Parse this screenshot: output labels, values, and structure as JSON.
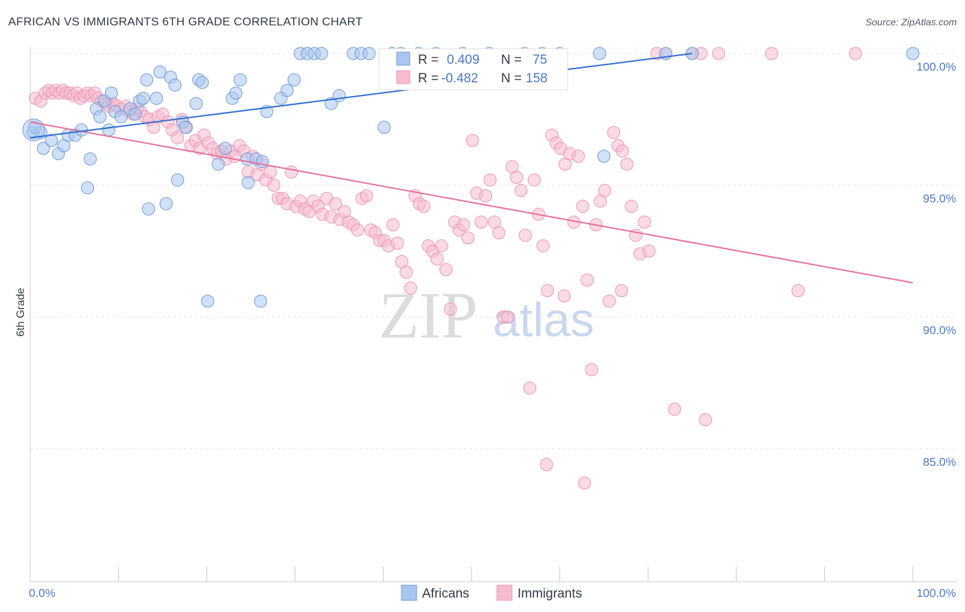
{
  "title": "AFRICAN VS IMMIGRANTS 6TH GRADE CORRELATION CHART",
  "source": "Source: ZipAtlas.com",
  "watermark": {
    "zip": "ZIP",
    "atlas": "atlas"
  },
  "colors": {
    "africans_fill": "#a9c6ee",
    "africans_stroke": "#6f9bd8",
    "africans_line": "#2f6fd0",
    "immigrants_fill": "#f6bcd0",
    "immigrants_stroke": "#ec93b3",
    "immigrants_line": "#e5709a",
    "tick_label": "#4a77c8",
    "grid": "#e6e6e6"
  },
  "legend_box": {
    "rows": [
      {
        "r_label": "R =",
        "r_value": "0.409",
        "n_label": "N =",
        "n_value": "75"
      },
      {
        "r_label": "R =",
        "r_value": "-0.482",
        "n_label": "N =",
        "n_value": "158"
      }
    ]
  },
  "bottom_legend": [
    "Africans",
    "Immigrants"
  ],
  "chart_data": {
    "type": "scatter",
    "title": "AFRICAN VS IMMIGRANTS 6TH GRADE CORRELATION CHART",
    "xlabel": "",
    "ylabel": "6th Grade",
    "x_tick_labels": [
      "0.0%",
      "100.0%"
    ],
    "y_tick_labels": [
      "100.0%",
      "95.0%",
      "90.0%",
      "85.0%"
    ],
    "y_ticks": [
      100,
      95,
      90,
      85
    ],
    "xlim": [
      0,
      100
    ],
    "ylim": [
      80,
      100
    ],
    "grid": true,
    "legend_position": "top-center",
    "series": [
      {
        "name": "Africans",
        "r": 0.409,
        "n": 75,
        "trend": {
          "x": [
            0,
            75
          ],
          "y": [
            96.8,
            100.0
          ]
        },
        "points": [
          [
            0.3,
            97.0
          ],
          [
            0.5,
            97.2
          ],
          [
            1.2,
            97.0
          ],
          [
            1.5,
            96.4
          ],
          [
            2.4,
            96.7
          ],
          [
            3.2,
            96.2
          ],
          [
            3.8,
            96.5
          ],
          [
            4.3,
            96.9
          ],
          [
            5.1,
            96.9
          ],
          [
            5.8,
            97.1
          ],
          [
            6.5,
            94.9
          ],
          [
            6.8,
            96.0
          ],
          [
            7.5,
            97.9
          ],
          [
            7.9,
            97.6
          ],
          [
            8.4,
            98.2
          ],
          [
            8.9,
            97.1
          ],
          [
            9.2,
            98.5
          ],
          [
            9.6,
            97.8
          ],
          [
            10.3,
            97.6
          ],
          [
            11.3,
            97.9
          ],
          [
            11.9,
            97.7
          ],
          [
            12.4,
            98.2
          ],
          [
            12.8,
            98.3
          ],
          [
            13.2,
            99.0
          ],
          [
            13.4,
            94.1
          ],
          [
            14.3,
            98.3
          ],
          [
            14.7,
            99.3
          ],
          [
            15.4,
            94.3
          ],
          [
            15.9,
            99.1
          ],
          [
            16.4,
            98.8
          ],
          [
            16.7,
            95.2
          ],
          [
            17.3,
            97.4
          ],
          [
            17.6,
            97.2
          ],
          [
            18.8,
            98.1
          ],
          [
            19.1,
            99.0
          ],
          [
            19.5,
            98.9
          ],
          [
            20.1,
            90.6
          ],
          [
            21.3,
            95.8
          ],
          [
            22.1,
            96.4
          ],
          [
            22.9,
            98.3
          ],
          [
            23.3,
            98.5
          ],
          [
            23.8,
            99.0
          ],
          [
            24.6,
            96.0
          ],
          [
            24.7,
            95.1
          ],
          [
            25.6,
            96.0
          ],
          [
            26.1,
            90.6
          ],
          [
            26.3,
            95.9
          ],
          [
            26.8,
            97.8
          ],
          [
            28.4,
            98.3
          ],
          [
            29.1,
            98.6
          ],
          [
            29.9,
            99.0
          ],
          [
            30.6,
            100.0
          ],
          [
            31.4,
            100.0
          ],
          [
            32.2,
            100.0
          ],
          [
            33.0,
            100.0
          ],
          [
            34.1,
            98.1
          ],
          [
            35.0,
            98.4
          ],
          [
            36.6,
            100.0
          ],
          [
            37.5,
            100.0
          ],
          [
            38.4,
            100.0
          ],
          [
            40.1,
            97.2
          ],
          [
            41.0,
            100.0
          ],
          [
            42.0,
            100.0
          ],
          [
            44.0,
            100.0
          ],
          [
            46.0,
            100.0
          ],
          [
            49.0,
            100.0
          ],
          [
            52.0,
            100.0
          ],
          [
            56.0,
            100.0
          ],
          [
            58.0,
            100.0
          ],
          [
            60.0,
            100.0
          ],
          [
            64.5,
            100.0
          ],
          [
            65.0,
            96.1
          ],
          [
            72.0,
            100.0
          ],
          [
            75.0,
            100.0
          ],
          [
            100.0,
            100.0
          ]
        ]
      },
      {
        "name": "Immigrants",
        "r": -0.482,
        "n": 158,
        "trend": {
          "x": [
            0,
            100
          ],
          "y": [
            97.4,
            91.3
          ]
        },
        "points": [
          [
            0.6,
            98.3
          ],
          [
            1.2,
            98.2
          ],
          [
            1.7,
            98.5
          ],
          [
            2.1,
            98.6
          ],
          [
            2.5,
            98.5
          ],
          [
            2.9,
            98.6
          ],
          [
            3.3,
            98.5
          ],
          [
            3.7,
            98.6
          ],
          [
            4.1,
            98.5
          ],
          [
            4.5,
            98.5
          ],
          [
            4.9,
            98.4
          ],
          [
            5.3,
            98.5
          ],
          [
            5.7,
            98.3
          ],
          [
            6.1,
            98.4
          ],
          [
            6.5,
            98.5
          ],
          [
            6.9,
            98.4
          ],
          [
            7.3,
            98.5
          ],
          [
            7.7,
            98.3
          ],
          [
            8.1,
            98.2
          ],
          [
            8.5,
            98.1
          ],
          [
            8.9,
            98.0
          ],
          [
            9.4,
            98.1
          ],
          [
            9.8,
            98.0
          ],
          [
            10.3,
            97.9
          ],
          [
            10.8,
            98.0
          ],
          [
            11.2,
            97.8
          ],
          [
            11.7,
            97.7
          ],
          [
            12.1,
            97.9
          ],
          [
            12.5,
            97.8
          ],
          [
            13.0,
            97.6
          ],
          [
            13.5,
            97.5
          ],
          [
            14.0,
            97.2
          ],
          [
            14.5,
            97.6
          ],
          [
            15.0,
            97.7
          ],
          [
            15.6,
            97.4
          ],
          [
            16.1,
            97.1
          ],
          [
            16.7,
            96.8
          ],
          [
            17.2,
            97.5
          ],
          [
            17.7,
            97.2
          ],
          [
            18.2,
            96.5
          ],
          [
            18.7,
            96.7
          ],
          [
            19.2,
            96.4
          ],
          [
            19.7,
            96.9
          ],
          [
            20.2,
            96.6
          ],
          [
            20.7,
            96.4
          ],
          [
            21.2,
            96.2
          ],
          [
            21.7,
            96.3
          ],
          [
            22.2,
            96.0
          ],
          [
            22.7,
            96.3
          ],
          [
            23.2,
            96.1
          ],
          [
            23.7,
            96.5
          ],
          [
            24.2,
            96.3
          ],
          [
            24.7,
            95.5
          ],
          [
            25.2,
            96.1
          ],
          [
            25.7,
            95.4
          ],
          [
            26.2,
            95.8
          ],
          [
            26.7,
            95.2
          ],
          [
            27.2,
            95.5
          ],
          [
            27.6,
            95.0
          ],
          [
            28.1,
            94.5
          ],
          [
            28.6,
            94.5
          ],
          [
            29.1,
            94.3
          ],
          [
            29.6,
            95.5
          ],
          [
            30.1,
            94.2
          ],
          [
            30.6,
            94.4
          ],
          [
            31.1,
            94.1
          ],
          [
            31.6,
            94.0
          ],
          [
            32.1,
            94.4
          ],
          [
            32.6,
            94.2
          ],
          [
            33.1,
            93.9
          ],
          [
            33.6,
            94.5
          ],
          [
            34.1,
            93.8
          ],
          [
            34.6,
            94.3
          ],
          [
            35.1,
            93.7
          ],
          [
            35.6,
            94.0
          ],
          [
            36.1,
            93.6
          ],
          [
            36.6,
            93.5
          ],
          [
            37.1,
            93.3
          ],
          [
            37.6,
            94.5
          ],
          [
            38.1,
            94.6
          ],
          [
            38.6,
            93.3
          ],
          [
            39.1,
            93.2
          ],
          [
            39.6,
            92.9
          ],
          [
            40.1,
            92.9
          ],
          [
            40.6,
            92.7
          ],
          [
            41.1,
            93.5
          ],
          [
            41.6,
            92.8
          ],
          [
            42.1,
            92.1
          ],
          [
            42.6,
            91.7
          ],
          [
            43.1,
            91.1
          ],
          [
            43.6,
            94.6
          ],
          [
            44.1,
            94.3
          ],
          [
            44.6,
            94.2
          ],
          [
            45.1,
            92.7
          ],
          [
            45.6,
            92.5
          ],
          [
            46.1,
            92.2
          ],
          [
            46.6,
            92.7
          ],
          [
            47.1,
            91.8
          ],
          [
            47.6,
            90.3
          ],
          [
            48.1,
            93.6
          ],
          [
            48.6,
            93.3
          ],
          [
            49.1,
            93.5
          ],
          [
            49.6,
            93.0
          ],
          [
            50.1,
            96.7
          ],
          [
            50.6,
            94.7
          ],
          [
            51.1,
            93.6
          ],
          [
            51.6,
            94.6
          ],
          [
            52.1,
            95.2
          ],
          [
            52.6,
            93.6
          ],
          [
            53.1,
            93.2
          ],
          [
            53.6,
            90.0
          ],
          [
            54.1,
            90.0
          ],
          [
            54.6,
            95.7
          ],
          [
            55.1,
            95.3
          ],
          [
            55.6,
            94.8
          ],
          [
            56.1,
            93.1
          ],
          [
            56.6,
            87.3
          ],
          [
            57.1,
            95.2
          ],
          [
            57.6,
            93.9
          ],
          [
            58.1,
            92.7
          ],
          [
            58.6,
            91.0
          ],
          [
            59.1,
            96.9
          ],
          [
            59.6,
            96.6
          ],
          [
            60.1,
            96.4
          ],
          [
            60.6,
            95.8
          ],
          [
            61.1,
            96.2
          ],
          [
            61.6,
            93.6
          ],
          [
            62.1,
            96.1
          ],
          [
            62.6,
            94.2
          ],
          [
            63.1,
            91.4
          ],
          [
            63.6,
            88.0
          ],
          [
            64.1,
            93.5
          ],
          [
            64.6,
            94.4
          ],
          [
            65.1,
            94.8
          ],
          [
            65.6,
            90.6
          ],
          [
            66.1,
            97.0
          ],
          [
            66.6,
            96.5
          ],
          [
            67.1,
            96.3
          ],
          [
            67.6,
            95.8
          ],
          [
            68.1,
            94.2
          ],
          [
            68.6,
            93.1
          ],
          [
            69.1,
            92.4
          ],
          [
            69.6,
            93.6
          ],
          [
            70.1,
            92.5
          ],
          [
            71.0,
            100.0
          ],
          [
            72.0,
            100.0
          ],
          [
            75.0,
            100.0
          ],
          [
            76.0,
            100.0
          ],
          [
            78.0,
            100.0
          ],
          [
            84.0,
            100.0
          ],
          [
            87.0,
            91.0
          ],
          [
            58.5,
            84.4
          ],
          [
            60.5,
            90.8
          ],
          [
            67.0,
            91.0
          ],
          [
            73.0,
            86.5
          ],
          [
            76.5,
            86.1
          ],
          [
            62.8,
            83.7
          ],
          [
            93.5,
            100.0
          ]
        ]
      }
    ]
  }
}
